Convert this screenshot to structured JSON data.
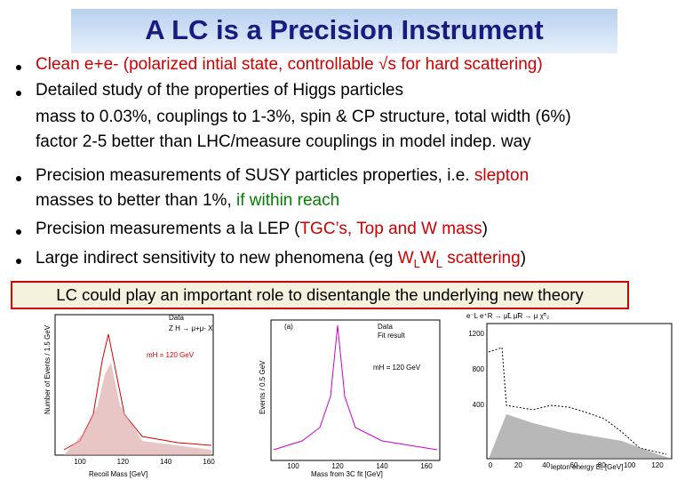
{
  "title": "A LC is a Precision Instrument",
  "lines": [
    {
      "bullet": true,
      "segments": [
        {
          "text": "Clean e+e- (polarized intial state, controllable √s for hard scattering)",
          "color": "#cc0000"
        }
      ]
    },
    {
      "bullet": true,
      "segments": [
        {
          "text": "Detailed study of the properties of Higgs particles",
          "color": "#000000"
        }
      ]
    },
    {
      "bullet": false,
      "segments": [
        {
          "text": "mass to 0.03%, couplings to 1-3%, spin & CP structure, total width (6%)",
          "color": "#000000"
        }
      ]
    },
    {
      "bullet": false,
      "segments": [
        {
          "text": "factor 2-5 better than LHC/measure couplings in model indep. way",
          "color": "#000000"
        }
      ]
    },
    {
      "bullet": true,
      "segments": [
        {
          "text": "Precision measurements of SUSY particles properties, i.e. ",
          "color": "#000000"
        },
        {
          "text": "slepton",
          "color": "#cc0000"
        }
      ]
    },
    {
      "bullet": false,
      "segments": [
        {
          "text": "masses to better than 1%, ",
          "color": "#000000"
        },
        {
          "text": "if within reach",
          "color": "#008000"
        }
      ]
    },
    {
      "bullet": true,
      "segments": [
        {
          "text": "Precision measurements a la LEP (",
          "color": "#000000"
        },
        {
          "text": "TGC’s, Top and W mass",
          "color": "#cc0000"
        },
        {
          "text": ")",
          "color": "#000000"
        }
      ]
    },
    {
      "bullet": true,
      "segments": [
        {
          "text": "Large indirect sensitivity to new phenomena (eg ",
          "color": "#000000"
        },
        {
          "text": "W",
          "color": "#cc0000"
        },
        {
          "text": "L",
          "color": "#cc0000",
          "sub": true
        },
        {
          "text": "W",
          "color": "#cc0000"
        },
        {
          "text": "L",
          "color": "#cc0000",
          "sub": true
        },
        {
          "text": " scattering",
          "color": "#cc0000"
        },
        {
          "text": ")",
          "color": "#000000"
        }
      ]
    }
  ],
  "highlight": "LC could  play an important role to disentangle the underlying new theory",
  "plot1": {
    "legend": [
      "Data",
      "Z H → μ+μ- X"
    ],
    "note": "mH = 120 GeV",
    "ylabel": "Number of Events / 1.5 GeV",
    "xlabel": "Recoil Mass [GeV]",
    "xticks": [
      "100",
      "120",
      "140",
      "160"
    ]
  },
  "plot2": {
    "panel": "(a)",
    "legend": [
      "Data",
      "Fit result"
    ],
    "note": "mH = 120 GeV",
    "ylabel": "Events / 0.5 GeV",
    "xlabel": "Mass from 3C fit [GeV]",
    "xticks": [
      "100",
      "120",
      "140",
      "160"
    ]
  },
  "plot3": {
    "formula": "e⁻L e⁺R → μ̃L μ̃R → μ χ̃⁰₂",
    "yticks": [
      "1200",
      "800",
      "400"
    ],
    "xticks": [
      "0",
      "20",
      "40",
      "60",
      "80",
      "100",
      "120"
    ],
    "xlabel": "lepton energy E₁ [GeV]"
  }
}
